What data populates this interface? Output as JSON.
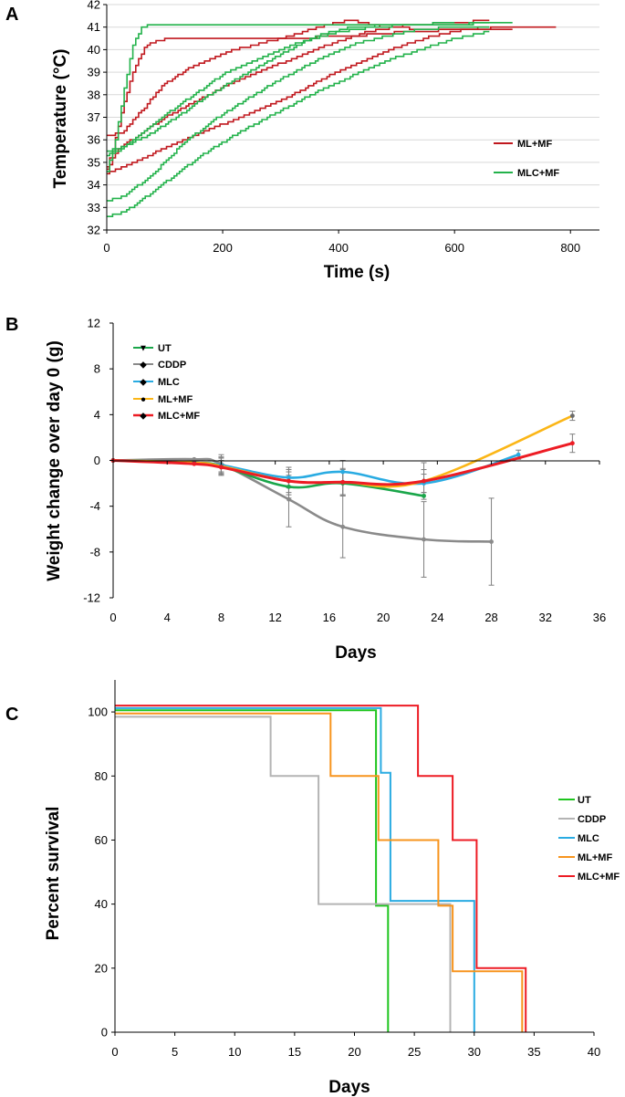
{
  "chart_data": [
    {
      "panel": "A",
      "type": "line",
      "title": "",
      "xlabel": "Time (s)",
      "ylabel": "Temperature (°C)",
      "xlim": [
        0,
        850
      ],
      "ylim": [
        32,
        42
      ],
      "xticks": [
        0,
        200,
        400,
        600,
        800
      ],
      "yticks": [
        32,
        33,
        34,
        35,
        36,
        37,
        38,
        39,
        40,
        41,
        42
      ],
      "legend_position": "right",
      "legend": [
        {
          "name": "ML+MF",
          "color": "#c0181e"
        },
        {
          "name": "MLC+MF",
          "color": "#23b24b"
        }
      ],
      "series": [
        {
          "name": "ML+MF",
          "color": "#c0181e",
          "points": [
            [
              0,
              34.8
            ],
            [
              10,
              35.5
            ],
            [
              25,
              37.2
            ],
            [
              45,
              39.0
            ],
            [
              65,
              40.1
            ],
            [
              85,
              40.4
            ],
            [
              110,
              40.5
            ],
            [
              160,
              40.5
            ],
            [
              200,
              40.5
            ],
            [
              300,
              40.5
            ],
            [
              420,
              40.6
            ],
            [
              520,
              40.8
            ],
            [
              620,
              40.9
            ],
            [
              700,
              40.9
            ]
          ]
        },
        {
          "name": "ML+MF",
          "color": "#c0181e",
          "points": [
            [
              0,
              36.2
            ],
            [
              25,
              36.3
            ],
            [
              60,
              37.3
            ],
            [
              100,
              38.5
            ],
            [
              150,
              39.3
            ],
            [
              220,
              40.0
            ],
            [
              300,
              40.5
            ],
            [
              380,
              41.1
            ],
            [
              420,
              41.3
            ],
            [
              480,
              41.0
            ],
            [
              560,
              40.9
            ],
            [
              620,
              40.9
            ],
            [
              660,
              41.0
            ]
          ]
        },
        {
          "name": "ML+MF",
          "color": "#c0181e",
          "points": [
            [
              0,
              34.7
            ],
            [
              20,
              35.6
            ],
            [
              60,
              36.3
            ],
            [
              100,
              37.0
            ],
            [
              160,
              37.8
            ],
            [
              220,
              38.6
            ],
            [
              300,
              39.4
            ],
            [
              380,
              40.2
            ],
            [
              450,
              40.8
            ],
            [
              520,
              41.1
            ],
            [
              600,
              41.2
            ],
            [
              660,
              41.3
            ]
          ]
        },
        {
          "name": "ML+MF",
          "color": "#c0181e",
          "points": [
            [
              0,
              34.5
            ],
            [
              30,
              34.8
            ],
            [
              80,
              35.4
            ],
            [
              140,
              36.1
            ],
            [
              200,
              36.7
            ],
            [
              260,
              37.3
            ],
            [
              320,
              38.0
            ],
            [
              380,
              38.8
            ],
            [
              440,
              39.5
            ],
            [
              500,
              40.1
            ],
            [
              560,
              40.6
            ],
            [
              620,
              40.9
            ],
            [
              700,
              41.0
            ],
            [
              775,
              41.0
            ]
          ]
        },
        {
          "name": "MLC+MF",
          "color": "#23b24b",
          "points": [
            [
              0,
              34.6
            ],
            [
              15,
              36.0
            ],
            [
              30,
              38.3
            ],
            [
              45,
              40.2
            ],
            [
              60,
              41.0
            ],
            [
              80,
              41.1
            ],
            [
              200,
              41.1
            ],
            [
              400,
              41.1
            ],
            [
              550,
              41.1
            ],
            [
              700,
              41.2
            ]
          ]
        },
        {
          "name": "MLC+MF",
          "color": "#23b24b",
          "points": [
            [
              0,
              35.3
            ],
            [
              25,
              35.6
            ],
            [
              60,
              36.3
            ],
            [
              100,
              37.1
            ],
            [
              150,
              38.0
            ],
            [
              200,
              38.9
            ],
            [
              260,
              39.6
            ],
            [
              330,
              40.3
            ],
            [
              400,
              40.8
            ],
            [
              460,
              41.0
            ],
            [
              520,
              41.1
            ],
            [
              600,
              41.2
            ]
          ]
        },
        {
          "name": "MLC+MF",
          "color": "#23b24b",
          "points": [
            [
              0,
              35.5
            ],
            [
              30,
              35.7
            ],
            [
              70,
              36.2
            ],
            [
              120,
              37.0
            ],
            [
              170,
              37.9
            ],
            [
              230,
              38.8
            ],
            [
              300,
              39.8
            ],
            [
              360,
              40.6
            ],
            [
              420,
              41.0
            ],
            [
              500,
              41.1
            ],
            [
              600,
              41.1
            ],
            [
              660,
              41.2
            ]
          ]
        },
        {
          "name": "MLC+MF",
          "color": "#23b24b",
          "points": [
            [
              0,
              33.3
            ],
            [
              30,
              33.5
            ],
            [
              80,
              34.5
            ],
            [
              130,
              35.8
            ],
            [
              180,
              36.8
            ],
            [
              240,
              37.8
            ],
            [
              300,
              38.7
            ],
            [
              360,
              39.5
            ],
            [
              420,
              40.2
            ],
            [
              480,
              40.6
            ],
            [
              540,
              40.9
            ],
            [
              600,
              41.0
            ],
            [
              660,
              41.0
            ]
          ]
        },
        {
          "name": "MLC+MF",
          "color": "#23b24b",
          "points": [
            [
              0,
              32.6
            ],
            [
              30,
              32.8
            ],
            [
              80,
              33.7
            ],
            [
              130,
              34.7
            ],
            [
              180,
              35.6
            ],
            [
              240,
              36.5
            ],
            [
              300,
              37.3
            ],
            [
              360,
              38.1
            ],
            [
              420,
              38.8
            ],
            [
              480,
              39.5
            ],
            [
              540,
              40.0
            ],
            [
              600,
              40.5
            ],
            [
              660,
              40.8
            ]
          ]
        }
      ]
    },
    {
      "panel": "B",
      "type": "line",
      "title": "",
      "xlabel": "Days",
      "ylabel": "Weight change over day 0 (g)",
      "xlim": [
        0,
        36
      ],
      "ylim": [
        -12,
        12
      ],
      "xticks": [
        0,
        4,
        8,
        12,
        16,
        20,
        24,
        28,
        32,
        36
      ],
      "yticks": [
        -12,
        -8,
        -4,
        0,
        4,
        8,
        12
      ],
      "legend_position": "top-left",
      "legend": [
        {
          "name": "UT",
          "color": "#1aa64a",
          "marker": "▼"
        },
        {
          "name": "CDDP",
          "color": "#8a8a8a",
          "marker": "◆"
        },
        {
          "name": "MLC",
          "color": "#29abe2",
          "marker": "◆"
        },
        {
          "name": "ML+MF",
          "color": "#fbb617",
          "marker": "●"
        },
        {
          "name": "MLC+MF",
          "color": "#ed1c24",
          "marker": "◆"
        }
      ],
      "series": [
        {
          "name": "UT",
          "color": "#1aa64a",
          "x": [
            0,
            6,
            8,
            13,
            17,
            23
          ],
          "y": [
            0,
            -0.2,
            -0.5,
            -2.3,
            -2.0,
            -3.1
          ],
          "err": [
            0,
            0,
            0.8,
            1.0,
            1.0,
            0
          ]
        },
        {
          "name": "CDDP",
          "color": "#8a8a8a",
          "x": [
            0,
            6,
            8,
            13,
            17,
            23,
            28
          ],
          "y": [
            0,
            0.1,
            -0.3,
            -3.4,
            -5.8,
            -6.9,
            -7.1
          ],
          "err": [
            0,
            0,
            0.8,
            2.4,
            2.7,
            3.3,
            3.8
          ]
        },
        {
          "name": "MLC",
          "color": "#29abe2",
          "x": [
            0,
            6,
            8,
            13,
            17,
            23,
            30
          ],
          "y": [
            0,
            -0.2,
            -0.4,
            -1.5,
            -1.0,
            -2.0,
            0.5
          ],
          "err": [
            0,
            0,
            0.6,
            0.9,
            1.0,
            0.8,
            0.4
          ]
        },
        {
          "name": "ML+MF",
          "color": "#fbb617",
          "x": [
            0,
            6,
            8,
            13,
            17,
            23,
            34
          ],
          "y": [
            0,
            -0.2,
            -0.5,
            -1.8,
            -1.9,
            -1.8,
            3.9
          ],
          "err": [
            0,
            0,
            0.8,
            1.2,
            1.1,
            1.0,
            0.4
          ]
        },
        {
          "name": "MLC+MF",
          "color": "#ed1c24",
          "x": [
            0,
            6,
            8,
            13,
            17,
            23,
            34
          ],
          "y": [
            0,
            -0.3,
            -0.6,
            -1.8,
            -1.9,
            -1.8,
            1.5
          ],
          "err": [
            0,
            0,
            0.6,
            1.0,
            1.2,
            1.6,
            0.8
          ]
        }
      ]
    },
    {
      "panel": "C",
      "type": "line",
      "subtype": "step",
      "title": "",
      "xlabel": "Days",
      "ylabel": "Percent survival",
      "xlim": [
        0,
        40
      ],
      "ylim": [
        0,
        110
      ],
      "xticks": [
        0,
        5,
        10,
        15,
        20,
        25,
        30,
        35,
        40
      ],
      "yticks": [
        0,
        20,
        40,
        60,
        80,
        100
      ],
      "legend_position": "right",
      "legend": [
        {
          "name": "UT",
          "color": "#1ec51e"
        },
        {
          "name": "CDDP",
          "color": "#b4b4b4"
        },
        {
          "name": "MLC",
          "color": "#29abe2"
        },
        {
          "name": "ML+MF",
          "color": "#f7941d"
        },
        {
          "name": "MLC+MF",
          "color": "#ed1c24"
        }
      ],
      "series": [
        {
          "name": "UT",
          "color": "#1ec51e",
          "steps": [
            [
              0,
              100.5
            ],
            [
              21.8,
              100.5
            ],
            [
              21.8,
              39.5
            ],
            [
              22.8,
              39.5
            ],
            [
              22.8,
              0
            ]
          ]
        },
        {
          "name": "CDDP",
          "color": "#b4b4b4",
          "steps": [
            [
              0,
              98.5
            ],
            [
              13,
              98.5
            ],
            [
              13,
              80
            ],
            [
              17,
              80
            ],
            [
              17,
              40
            ],
            [
              28,
              40
            ],
            [
              28,
              0
            ]
          ]
        },
        {
          "name": "MLC",
          "color": "#29abe2",
          "steps": [
            [
              0,
              101.2
            ],
            [
              22.2,
              101.2
            ],
            [
              22.2,
              81
            ],
            [
              23,
              81
            ],
            [
              23,
              41
            ],
            [
              30,
              41
            ],
            [
              30,
              0
            ]
          ]
        },
        {
          "name": "ML+MF",
          "color": "#f7941d",
          "steps": [
            [
              0,
              99.5
            ],
            [
              18,
              99.5
            ],
            [
              18,
              80
            ],
            [
              22,
              80
            ],
            [
              22,
              60
            ],
            [
              27,
              60
            ],
            [
              27,
              39.5
            ],
            [
              28.2,
              39.5
            ],
            [
              28.2,
              19
            ],
            [
              34,
              19
            ],
            [
              34,
              0
            ]
          ]
        },
        {
          "name": "MLC+MF",
          "color": "#ed1c24",
          "steps": [
            [
              0,
              102
            ],
            [
              25.3,
              102
            ],
            [
              25.3,
              80
            ],
            [
              28.2,
              80
            ],
            [
              28.2,
              60
            ],
            [
              30.2,
              60
            ],
            [
              30.2,
              20
            ],
            [
              34.3,
              20
            ],
            [
              34.3,
              0
            ]
          ]
        }
      ]
    }
  ]
}
